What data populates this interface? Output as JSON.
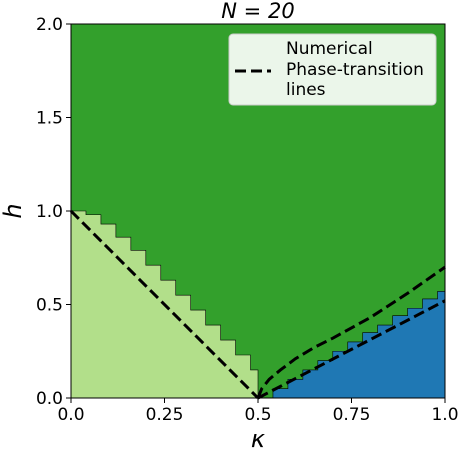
{
  "chart_data": {
    "type": "heatmap",
    "title": "N = 20",
    "xlabel": "κ",
    "ylabel": "h",
    "xlim": [
      0.0,
      1.0
    ],
    "ylim": [
      0.0,
      2.0
    ],
    "xticks": [
      "0.0",
      "0.25",
      "0.5",
      "0.75",
      "1.0"
    ],
    "xtick_values": [
      0.0,
      0.25,
      0.5,
      0.75,
      1.0
    ],
    "yticks": [
      "0.0",
      "0.5",
      "1.0",
      "1.5",
      "2.0"
    ],
    "ytick_values": [
      0.0,
      0.5,
      1.0,
      1.5,
      2.0
    ],
    "grid": false,
    "legend_position": "top-right",
    "colors": {
      "upper_region": "#33a02c",
      "left_region": "#b2df8a",
      "right_region": "#1f78b4",
      "lines": "#000000"
    },
    "regions": [
      {
        "key": "left",
        "boundary_steps": [
          [
            0.0,
            1.0
          ],
          [
            0.04,
            0.98
          ],
          [
            0.08,
            0.93
          ],
          [
            0.12,
            0.86
          ],
          [
            0.16,
            0.79
          ],
          [
            0.2,
            0.71
          ],
          [
            0.24,
            0.63
          ],
          [
            0.28,
            0.55
          ],
          [
            0.32,
            0.47
          ],
          [
            0.36,
            0.39
          ],
          [
            0.4,
            0.31
          ],
          [
            0.44,
            0.23
          ],
          [
            0.48,
            0.15
          ],
          [
            0.5,
            0.0
          ]
        ]
      },
      {
        "key": "right",
        "boundary_steps": [
          [
            0.5,
            0.0
          ],
          [
            0.54,
            0.05
          ],
          [
            0.58,
            0.1
          ],
          [
            0.62,
            0.15
          ],
          [
            0.66,
            0.2
          ],
          [
            0.7,
            0.25
          ],
          [
            0.74,
            0.3
          ],
          [
            0.78,
            0.35
          ],
          [
            0.82,
            0.39
          ],
          [
            0.86,
            0.44
          ],
          [
            0.9,
            0.48
          ],
          [
            0.94,
            0.53
          ],
          [
            0.98,
            0.57
          ],
          [
            1.0,
            0.63
          ]
        ]
      }
    ],
    "lines": [
      {
        "key": "left",
        "points": [
          [
            0.0,
            1.0
          ],
          [
            0.5,
            0.0
          ]
        ]
      },
      {
        "key": "right_lower",
        "points": [
          [
            0.5,
            0.0
          ],
          [
            1.0,
            0.52
          ]
        ]
      },
      {
        "key": "right_upper",
        "points": [
          [
            0.5,
            0.0
          ],
          [
            0.51,
            0.05
          ],
          [
            0.53,
            0.1
          ],
          [
            0.56,
            0.15
          ],
          [
            0.6,
            0.21
          ],
          [
            0.65,
            0.27
          ],
          [
            0.7,
            0.32
          ],
          [
            0.8,
            0.43
          ],
          [
            0.9,
            0.56
          ],
          [
            1.0,
            0.7
          ]
        ]
      }
    ],
    "legend": {
      "entries": [
        {
          "label": "Numerical"
        },
        {
          "label": "Phase-transition lines",
          "label_lines": [
            "Phase-transition",
            "lines"
          ],
          "style": "dashed"
        }
      ]
    }
  }
}
